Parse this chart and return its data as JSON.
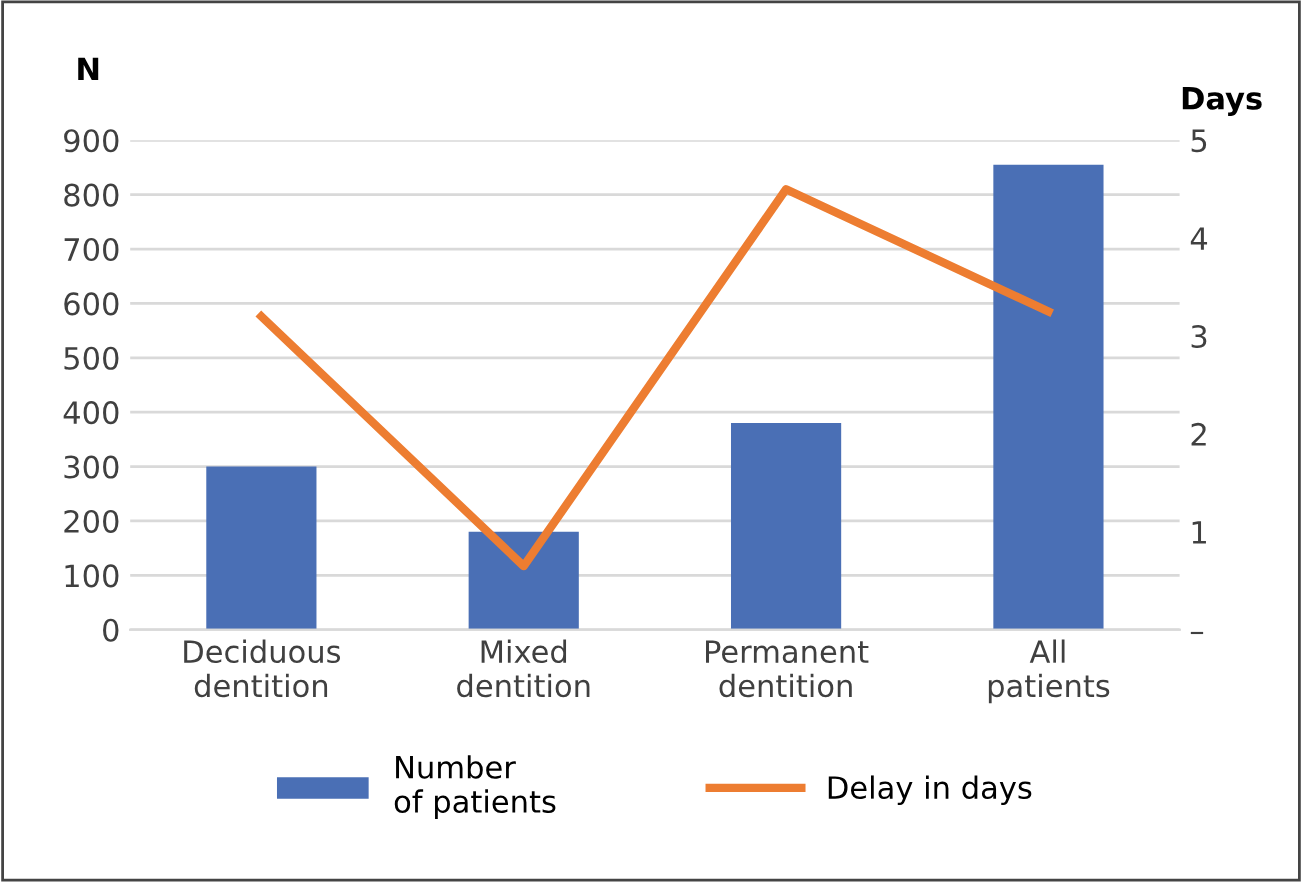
{
  "chart_data": {
    "type": "bar",
    "ylabel": "N",
    "y2label": "Days",
    "categories": [
      "Deciduous\ndentition",
      "Mixed\ndentition",
      "Permanent\ndentition",
      "All\npatients"
    ],
    "series": [
      {
        "name": "Number\nof patients",
        "color": "#4a6fb5",
        "values": [
          300,
          180,
          380,
          855
        ]
      },
      {
        "name": "Delay in days",
        "type": "line",
        "axis": "y2",
        "color": "#ed7d31",
        "values": [
          3.2,
          0.65,
          4.5,
          3.25
        ]
      }
    ],
    "ylim": [
      0,
      900
    ],
    "yticks": [
      0,
      100,
      200,
      300,
      400,
      500,
      600,
      700,
      800,
      900
    ],
    "y2lim": [
      0,
      5
    ],
    "y2ticks": [
      {
        "value": 0,
        "label": "–"
      },
      1,
      2,
      3,
      4,
      5
    ],
    "grid": "y",
    "legend": "bottom"
  }
}
